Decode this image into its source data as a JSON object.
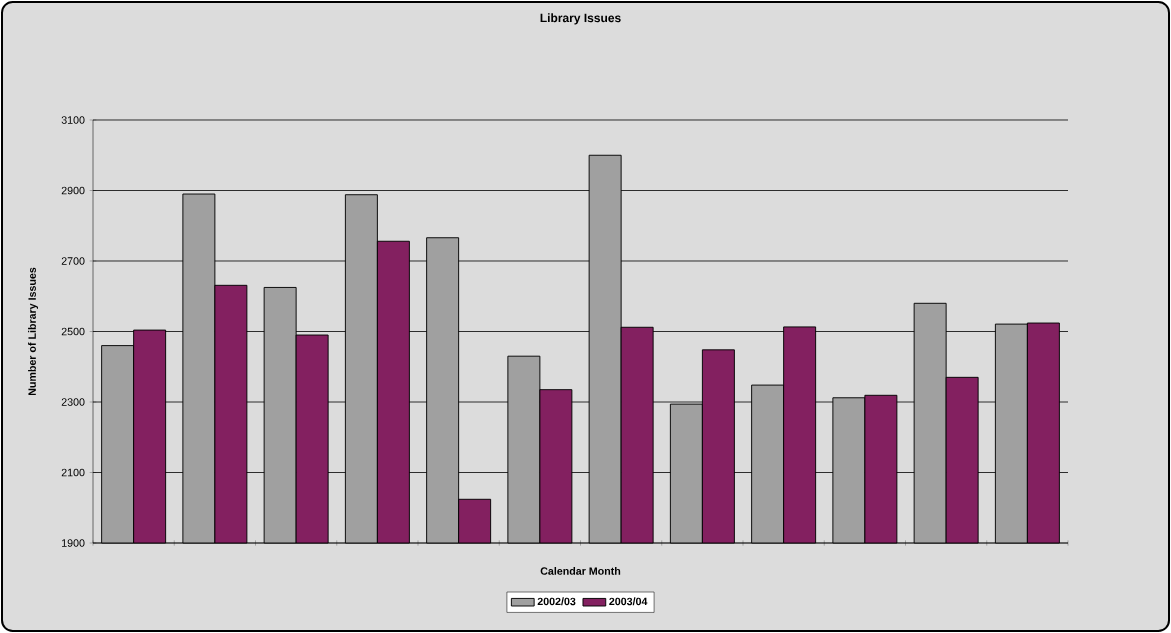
{
  "chart_data": {
    "type": "bar",
    "title": "Library Issues",
    "xlabel": "Calendar Month",
    "ylabel": "Number of Library Issues",
    "categories": [
      null,
      null,
      null,
      null,
      null,
      null,
      null,
      null,
      null,
      null,
      null,
      null
    ],
    "series": [
      {
        "name": "2002/03",
        "color": "#a0a0a0",
        "values": [
          2460,
          2890,
          2625,
          2888,
          2766,
          2430,
          3000,
          2294,
          2348,
          2312,
          2580,
          2521
        ]
      },
      {
        "name": "2003/04",
        "color": "#832060",
        "values": [
          2504,
          2631,
          2490,
          2756,
          2024,
          2335,
          2512,
          2448,
          2513,
          2319,
          2370,
          2524
        ]
      }
    ],
    "ylim": [
      1900,
      3100
    ],
    "yticks": [
      1900,
      2100,
      2300,
      2500,
      2700,
      2900,
      3100
    ],
    "grid": "y",
    "legend": "bottom"
  }
}
